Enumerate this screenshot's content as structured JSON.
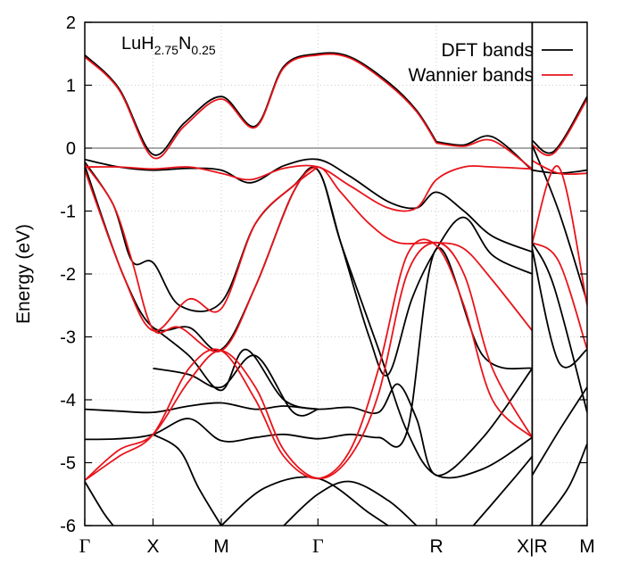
{
  "chart_data": {
    "type": "line",
    "title": "",
    "annotation": {
      "base": "LuH",
      "sub1": "2.75",
      "mid": "N",
      "sub2": "0.25"
    },
    "ylabel": "Energy (eV)",
    "xlabel": "",
    "ylim": [
      -6,
      2
    ],
    "yticks": [
      {
        "value": 2,
        "label": "2"
      },
      {
        "value": 1,
        "label": "1"
      },
      {
        "value": 0,
        "label": "0"
      },
      {
        "value": -1,
        "label": "-1"
      },
      {
        "value": -2,
        "label": "-2"
      },
      {
        "value": -3,
        "label": "-3"
      },
      {
        "value": -4,
        "label": "-4"
      },
      {
        "value": -5,
        "label": "-5"
      },
      {
        "value": -6,
        "label": "-6"
      }
    ],
    "xlim": [
      0,
      5.3
    ],
    "kpoints": [
      {
        "x": 0.0,
        "label": "Γ",
        "serif": true
      },
      {
        "x": 0.72,
        "label": "X",
        "serif": false
      },
      {
        "x": 1.44,
        "label": "M",
        "serif": false
      },
      {
        "x": 2.46,
        "label": "Γ",
        "serif": true
      },
      {
        "x": 3.71,
        "label": "R",
        "serif": false
      },
      {
        "x": 4.72,
        "label": "X|R",
        "serif": false
      },
      {
        "x": 5.3,
        "label": "M",
        "serif": false
      }
    ],
    "break_x": 4.72,
    "fermi_level": 0,
    "grid": true,
    "legend": {
      "position": "top-right",
      "entries": [
        {
          "name": "DFT bands",
          "color": "#000000"
        },
        {
          "name": "Wannier bands",
          "color": "#e8141b"
        }
      ]
    },
    "series": [
      {
        "group": "DFT bands",
        "segments": [
          [
            [
              0,
              1.48
            ],
            [
              0.36,
              0.95
            ],
            [
              0.72,
              -0.1
            ],
            [
              1.05,
              0.4
            ],
            [
              1.44,
              0.82
            ],
            [
              1.8,
              0.35
            ],
            [
              2.1,
              1.3
            ],
            [
              2.46,
              1.5
            ],
            [
              2.8,
              1.45
            ],
            [
              3.2,
              1.05
            ],
            [
              3.5,
              0.6
            ],
            [
              3.71,
              0.1
            ]
          ],
          [
            [
              3.71,
              0.1
            ],
            [
              4.0,
              0.05
            ],
            [
              4.3,
              0.18
            ],
            [
              4.72,
              -0.35
            ]
          ],
          [
            [
              4.72,
              0.12
            ],
            [
              4.95,
              -0.05
            ],
            [
              5.3,
              0.82
            ]
          ],
          [
            [
              0,
              -0.18
            ],
            [
              0.36,
              -0.3
            ],
            [
              0.72,
              -0.35
            ],
            [
              1.1,
              -0.32
            ],
            [
              1.44,
              -0.35
            ],
            [
              1.75,
              -0.55
            ],
            [
              2.1,
              -0.28
            ],
            [
              2.46,
              -0.18
            ],
            [
              2.8,
              -0.45
            ],
            [
              3.2,
              -0.85
            ],
            [
              3.5,
              -0.95
            ],
            [
              3.71,
              -0.7
            ],
            [
              4.0,
              -1.0
            ],
            [
              4.3,
              -1.4
            ],
            [
              4.72,
              -1.65
            ]
          ],
          [
            [
              0,
              -0.22
            ],
            [
              0.3,
              -0.9
            ],
            [
              0.5,
              -1.8
            ],
            [
              0.72,
              -1.82
            ],
            [
              1.0,
              -2.5
            ],
            [
              1.44,
              -2.45
            ],
            [
              1.8,
              -1.2
            ],
            [
              2.2,
              -0.6
            ],
            [
              2.46,
              -0.35
            ],
            [
              2.7,
              -1.5
            ],
            [
              3.0,
              -3.0
            ],
            [
              3.2,
              -3.6
            ],
            [
              3.45,
              -2.4
            ],
            [
              3.71,
              -1.6
            ],
            [
              4.0,
              -1.1
            ],
            [
              4.3,
              -1.7
            ],
            [
              4.72,
              -2.0
            ]
          ],
          [
            [
              0,
              -0.28
            ],
            [
              0.4,
              -2.0
            ],
            [
              0.72,
              -2.85
            ],
            [
              1.1,
              -2.85
            ],
            [
              1.44,
              -3.2
            ],
            [
              1.8,
              -2.2
            ],
            [
              2.2,
              -0.7
            ],
            [
              2.46,
              -0.35
            ],
            [
              2.7,
              -1.5
            ],
            [
              3.1,
              -3.2
            ],
            [
              3.4,
              -4.5
            ],
            [
              3.71,
              -5.2
            ],
            [
              4.2,
              -5.1
            ],
            [
              4.72,
              -4.6
            ]
          ],
          [
            [
              0,
              -4.15
            ],
            [
              0.36,
              -4.18
            ],
            [
              0.72,
              -4.2
            ],
            [
              1.1,
              -4.1
            ],
            [
              1.44,
              -4.05
            ],
            [
              1.8,
              -4.15
            ],
            [
              2.1,
              -4.1
            ],
            [
              2.46,
              -4.15
            ],
            [
              2.8,
              -4.12
            ],
            [
              3.1,
              -4.2
            ],
            [
              3.3,
              -3.75
            ],
            [
              3.5,
              -4.3
            ],
            [
              3.71,
              -5.2
            ],
            [
              4.2,
              -4.6
            ],
            [
              4.72,
              -3.5
            ]
          ],
          [
            [
              0,
              -4.63
            ],
            [
              0.36,
              -4.62
            ],
            [
              0.72,
              -4.55
            ],
            [
              1.1,
              -4.3
            ],
            [
              1.44,
              -4.65
            ],
            [
              1.8,
              -4.6
            ],
            [
              2.1,
              -4.55
            ],
            [
              2.46,
              -4.62
            ],
            [
              2.8,
              -4.55
            ],
            [
              3.1,
              -4.6
            ],
            [
              3.4,
              -4.5
            ],
            [
              3.71,
              -1.6
            ],
            [
              4.2,
              -3.3
            ],
            [
              4.72,
              -3.5
            ]
          ],
          [
            [
              0.72,
              -4.55
            ],
            [
              1.0,
              -4.8
            ],
            [
              1.2,
              -5.4
            ],
            [
              1.44,
              -6.0
            ]
          ],
          [
            [
              0.72,
              -2.85
            ],
            [
              1.1,
              -3.3
            ],
            [
              1.44,
              -3.85
            ],
            [
              1.7,
              -3.2
            ],
            [
              2.1,
              -4.0
            ],
            [
              2.46,
              -4.15
            ]
          ],
          [
            [
              0.72,
              -3.5
            ],
            [
              1.1,
              -3.6
            ],
            [
              1.44,
              -3.8
            ],
            [
              1.8,
              -3.3
            ],
            [
              2.2,
              -4.2
            ],
            [
              2.46,
              -4.15
            ]
          ],
          [
            [
              1.44,
              -6.0
            ],
            [
              1.9,
              -5.4
            ],
            [
              2.46,
              -5.25
            ],
            [
              3.0,
              -5.8
            ],
            [
              3.2,
              -6.0
            ]
          ],
          [
            [
              0.0,
              -5.3
            ],
            [
              0.2,
              -5.8
            ],
            [
              0.3,
              -6.0
            ]
          ],
          [
            [
              2.1,
              -6.0
            ],
            [
              2.46,
              -5.5
            ],
            [
              2.8,
              -5.3
            ],
            [
              3.2,
              -5.6
            ],
            [
              3.5,
              -6.0
            ]
          ],
          [
            [
              4.1,
              -6.0
            ],
            [
              4.5,
              -5.3
            ],
            [
              4.72,
              -4.9
            ]
          ],
          [
            [
              4.72,
              -1.5
            ],
            [
              4.95,
              -2.2
            ],
            [
              5.3,
              -4.2
            ]
          ],
          [
            [
              4.72,
              -1.6
            ],
            [
              5.0,
              -3.4
            ],
            [
              5.3,
              -3.2
            ]
          ],
          [
            [
              4.72,
              -5.2
            ],
            [
              5.0,
              -4.5
            ],
            [
              5.3,
              -3.8
            ]
          ],
          [
            [
              4.72,
              -0.35
            ],
            [
              5.0,
              -0.4
            ],
            [
              5.3,
              -0.35
            ]
          ],
          [
            [
              4.72,
              0.05
            ],
            [
              5.0,
              -1.0
            ],
            [
              5.3,
              -2.45
            ]
          ],
          [
            [
              4.8,
              -6.0
            ],
            [
              5.1,
              -5.4
            ],
            [
              5.3,
              -4.7
            ]
          ]
        ]
      },
      {
        "group": "Wannier bands",
        "segments": [
          [
            [
              0,
              1.45
            ],
            [
              0.36,
              0.93
            ],
            [
              0.72,
              -0.15
            ],
            [
              1.05,
              0.35
            ],
            [
              1.44,
              0.78
            ],
            [
              1.8,
              0.33
            ],
            [
              2.1,
              1.28
            ],
            [
              2.46,
              1.48
            ],
            [
              2.8,
              1.43
            ],
            [
              3.2,
              1.02
            ],
            [
              3.5,
              0.58
            ],
            [
              3.71,
              0.08
            ]
          ],
          [
            [
              3.71,
              0.08
            ],
            [
              4.0,
              0.03
            ],
            [
              4.3,
              0.12
            ],
            [
              4.72,
              -0.33
            ]
          ],
          [
            [
              4.72,
              0.05
            ],
            [
              4.95,
              -0.08
            ],
            [
              5.3,
              0.78
            ]
          ],
          [
            [
              0,
              -0.3
            ],
            [
              0.36,
              -0.3
            ],
            [
              0.72,
              -0.33
            ],
            [
              1.1,
              -0.3
            ],
            [
              1.44,
              -0.4
            ],
            [
              1.75,
              -0.5
            ],
            [
              2.1,
              -0.32
            ],
            [
              2.46,
              -0.3
            ],
            [
              2.8,
              -0.6
            ],
            [
              3.2,
              -0.95
            ],
            [
              3.5,
              -0.95
            ],
            [
              3.71,
              -0.5
            ],
            [
              4.0,
              -0.3
            ],
            [
              4.3,
              -0.3
            ],
            [
              4.72,
              -0.33
            ]
          ],
          [
            [
              0,
              -0.25
            ],
            [
              0.3,
              -0.9
            ],
            [
              0.5,
              -1.8
            ],
            [
              0.72,
              -2.88
            ],
            [
              1.0,
              -2.85
            ],
            [
              1.44,
              -3.22
            ],
            [
              1.8,
              -2.2
            ],
            [
              2.2,
              -0.7
            ],
            [
              2.46,
              -0.3
            ],
            [
              2.7,
              -0.7
            ],
            [
              3.0,
              -1.2
            ],
            [
              3.3,
              -1.5
            ],
            [
              3.71,
              -1.5
            ],
            [
              4.0,
              -1.6
            ],
            [
              4.3,
              -2.1
            ],
            [
              4.72,
              -2.9
            ]
          ],
          [
            [
              0,
              -0.35
            ],
            [
              0.4,
              -2.0
            ],
            [
              0.72,
              -2.9
            ],
            [
              1.1,
              -2.4
            ],
            [
              1.44,
              -2.55
            ],
            [
              1.8,
              -1.2
            ],
            [
              2.2,
              -0.6
            ],
            [
              2.46,
              -0.3
            ]
          ],
          [
            [
              0,
              -5.28
            ],
            [
              0.36,
              -4.8
            ],
            [
              0.72,
              -4.55
            ],
            [
              1.1,
              -3.7
            ],
            [
              1.44,
              -3.22
            ],
            [
              1.8,
              -3.8
            ],
            [
              2.1,
              -4.8
            ],
            [
              2.46,
              -5.25
            ],
            [
              2.8,
              -4.9
            ],
            [
              3.1,
              -3.9
            ],
            [
              3.4,
              -2.0
            ],
            [
              3.71,
              -1.5
            ],
            [
              4.0,
              -2.0
            ],
            [
              4.3,
              -3.5
            ],
            [
              4.72,
              -4.6
            ]
          ],
          [
            [
              0,
              -5.28
            ],
            [
              0.36,
              -4.9
            ],
            [
              0.72,
              -4.55
            ],
            [
              1.1,
              -3.5
            ],
            [
              1.44,
              -3.22
            ],
            [
              1.8,
              -4.0
            ],
            [
              2.1,
              -4.9
            ],
            [
              2.46,
              -5.25
            ],
            [
              2.8,
              -4.8
            ],
            [
              3.1,
              -3.5
            ],
            [
              3.4,
              -1.7
            ],
            [
              3.71,
              -1.55
            ],
            [
              4.0,
              -2.5
            ],
            [
              4.3,
              -4.0
            ],
            [
              4.72,
              -4.6
            ]
          ],
          [
            [
              4.72,
              -1.5
            ],
            [
              5.0,
              -1.8
            ],
            [
              5.3,
              -3.2
            ]
          ],
          [
            [
              4.72,
              -0.2
            ],
            [
              5.0,
              -0.4
            ],
            [
              5.3,
              -0.4
            ]
          ],
          [
            [
              4.72,
              -1.5
            ],
            [
              5.0,
              -0.3
            ],
            [
              5.3,
              -2.5
            ]
          ]
        ]
      }
    ]
  }
}
